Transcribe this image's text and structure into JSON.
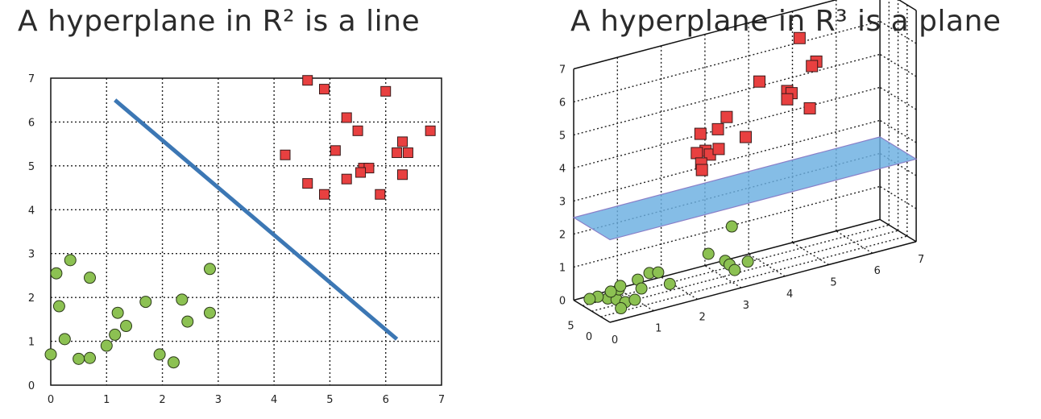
{
  "titles": {
    "left": "A hyperplane in R² is a line",
    "right": "A hyperplane in R³ is a plane"
  },
  "colors": {
    "class_a": "#e84040",
    "class_b": "#8cc152",
    "line": "#3c77b4",
    "plane": "#6aaee0"
  },
  "chart_data": [
    {
      "type": "scatter",
      "title": "A hyperplane in R² is a line",
      "xlabel": "",
      "ylabel": "",
      "xlim": [
        0,
        7
      ],
      "ylim": [
        0,
        7
      ],
      "xticks": [
        0,
        1,
        2,
        3,
        4,
        5,
        6,
        7
      ],
      "yticks": [
        0,
        1,
        2,
        3,
        4,
        5,
        6,
        7
      ],
      "grid": true,
      "series": [
        {
          "marker": "square",
          "color": "#e84040",
          "points": [
            [
              4.6,
              6.95
            ],
            [
              4.9,
              6.75
            ],
            [
              6.0,
              6.7
            ],
            [
              5.3,
              6.1
            ],
            [
              5.5,
              5.8
            ],
            [
              6.8,
              5.8
            ],
            [
              4.2,
              5.25
            ],
            [
              5.1,
              5.35
            ],
            [
              6.3,
              5.55
            ],
            [
              6.2,
              5.3
            ],
            [
              6.4,
              5.3
            ],
            [
              5.6,
              4.95
            ],
            [
              5.7,
              4.95
            ],
            [
              5.55,
              4.85
            ],
            [
              6.3,
              4.8
            ],
            [
              5.3,
              4.7
            ],
            [
              4.6,
              4.6
            ],
            [
              4.9,
              4.35
            ],
            [
              5.9,
              4.35
            ]
          ]
        },
        {
          "marker": "circle",
          "color": "#8cc152",
          "points": [
            [
              0.35,
              2.85
            ],
            [
              0.1,
              2.55
            ],
            [
              0.7,
              2.45
            ],
            [
              2.85,
              2.65
            ],
            [
              0.15,
              1.8
            ],
            [
              1.7,
              1.9
            ],
            [
              2.35,
              1.95
            ],
            [
              1.2,
              1.65
            ],
            [
              2.85,
              1.65
            ],
            [
              2.45,
              1.45
            ],
            [
              1.35,
              1.35
            ],
            [
              1.15,
              1.15
            ],
            [
              0.25,
              1.05
            ],
            [
              1.0,
              0.9
            ],
            [
              0.0,
              0.7
            ],
            [
              1.95,
              0.7
            ],
            [
              0.5,
              0.6
            ],
            [
              0.7,
              0.62
            ],
            [
              2.2,
              0.52
            ]
          ]
        }
      ],
      "hyperplane": {
        "from": [
          1.15,
          6.5
        ],
        "to": [
          6.2,
          1.05
        ]
      }
    },
    {
      "type": "scatter",
      "title": "A hyperplane in R³ is a plane",
      "xlabel": "",
      "ylabel": "",
      "zlabel": "",
      "xlim": [
        0,
        7
      ],
      "ylim": [
        0,
        10
      ],
      "zlim": [
        0,
        7
      ],
      "xticks": [
        0,
        1,
        2,
        3,
        4,
        5,
        6,
        7
      ],
      "yticks": [
        0,
        5
      ],
      "zticks": [
        0,
        1,
        2,
        3,
        4,
        5,
        6,
        7
      ],
      "grid": true,
      "series": [
        {
          "marker": "square",
          "color": "#e84040",
          "points": [
            [
              3.5,
              1,
              6.0
            ],
            [
              4.5,
              2,
              6.9
            ],
            [
              4.3,
              3,
              5.3
            ],
            [
              4.4,
              3,
              5.2
            ],
            [
              4.3,
              3,
              5.05
            ],
            [
              3.0,
              4,
              4.9
            ],
            [
              2.4,
              4,
              4.6
            ],
            [
              2.8,
              4,
              4.6
            ],
            [
              2.6,
              5,
              3.95
            ],
            [
              2.7,
              5,
              3.8
            ],
            [
              2.4,
              5,
              3.95
            ],
            [
              2.9,
              5,
              3.9
            ],
            [
              2.5,
              5,
              3.6
            ],
            [
              2.6,
              6,
              3.3
            ],
            [
              3.6,
              6,
              3.95
            ],
            [
              4.8,
              1,
              6.15
            ],
            [
              4.7,
              1,
              6.05
            ],
            [
              4.9,
              4,
              4.5
            ]
          ]
        },
        {
          "marker": "circle",
          "color": "#8cc152",
          "points": [
            [
              0.2,
              3,
              0.45
            ],
            [
              0.4,
              3,
              0.35
            ],
            [
              0.6,
              3,
              0.2
            ],
            [
              0.5,
              3,
              0.05
            ],
            [
              0.9,
              4,
              0.1
            ],
            [
              1.7,
              4,
              0.3
            ],
            [
              1.3,
              8,
              0.3
            ],
            [
              1.4,
              6,
              0.6
            ],
            [
              0.7,
              6,
              0.35
            ],
            [
              0.3,
              7,
              0.2
            ],
            [
              0.2,
              8,
              0.1
            ],
            [
              0.9,
              8,
              0.25
            ],
            [
              0.6,
              7,
              0.25
            ],
            [
              1.3,
              7,
              0.1
            ],
            [
              1.6,
              6,
              0.55
            ],
            [
              3.2,
              5,
              1.45
            ],
            [
              2.5,
              3,
              1.0
            ],
            [
              2.8,
              2,
              0.75
            ],
            [
              2.9,
              2,
              0.6
            ],
            [
              3.4,
              3,
              0.45
            ],
            [
              3.1,
              3,
              0.3
            ]
          ]
        }
      ],
      "hyperplane": {
        "z": 2.5
      }
    }
  ]
}
